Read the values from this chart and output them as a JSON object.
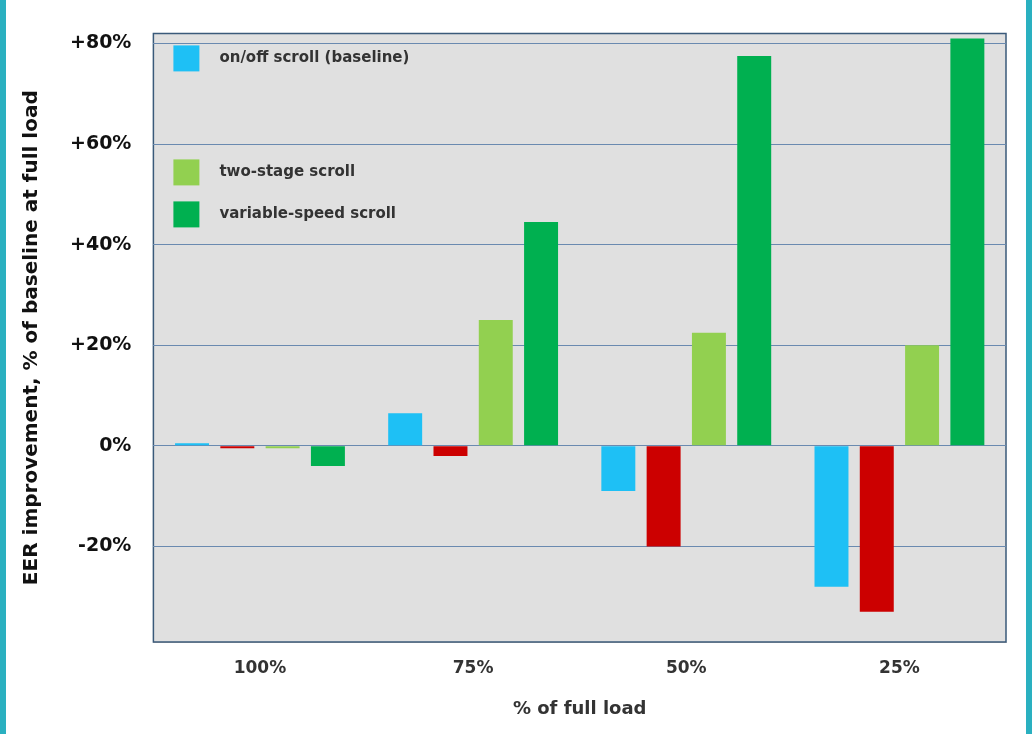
{
  "chart_data": {
    "type": "bar",
    "xlabel": "% of full load",
    "ylabel": "EER improvement, % of baseline at full load",
    "categories": [
      "100%",
      "75%",
      "50%",
      "25%"
    ],
    "series": [
      {
        "name": "on/off scroll (baseline)",
        "color": "#1ec0f5",
        "values": [
          0.5,
          6.5,
          -9,
          -28
        ]
      },
      {
        "color": "#cc0000",
        "values": [
          -0.5,
          -2,
          -20,
          -33
        ]
      },
      {
        "name": "two-stage scroll",
        "color": "#92d050",
        "values": [
          -0.5,
          25,
          22.5,
          20
        ]
      },
      {
        "name": "variable-speed scroll",
        "color": "#00b050",
        "values": [
          -4,
          44.5,
          77.5,
          81
        ]
      }
    ],
    "ylim": [
      -39,
      82
    ],
    "yticks": [
      {
        "value": -20,
        "label": "-20%"
      },
      {
        "value": 0,
        "label": "0%"
      },
      {
        "value": 20,
        "label": "+20%"
      },
      {
        "value": 40,
        "label": "+40%"
      },
      {
        "value": 60,
        "label": "+60%"
      },
      {
        "value": 80,
        "label": "+80%"
      }
    ],
    "grid": "y",
    "legend": "top left"
  }
}
